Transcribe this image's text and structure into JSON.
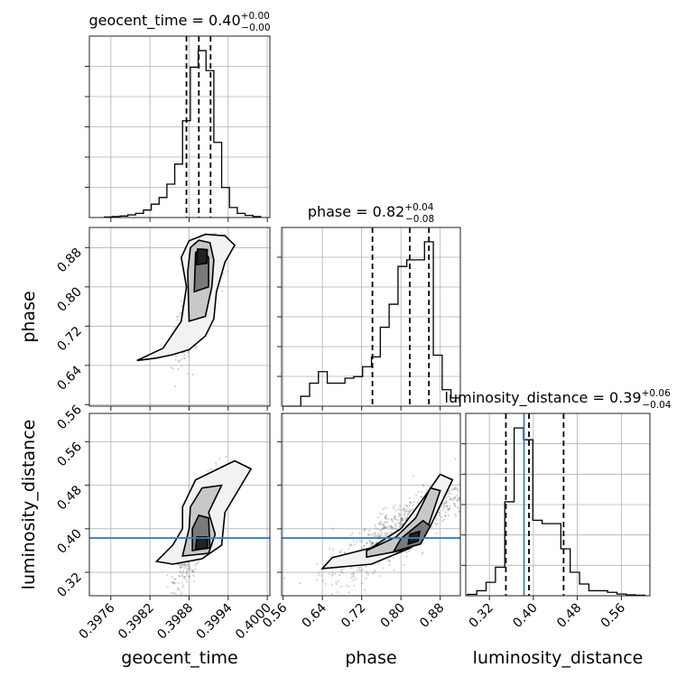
{
  "chart_data": {
    "type": "corner",
    "parameters": [
      "geocent_time",
      "phase",
      "luminosity_distance"
    ],
    "axis_labels": {
      "geocent_time": "geocent_time",
      "phase": "phase",
      "luminosity_distance": "luminosity_distance"
    },
    "ranges": {
      "geocent_time": [
        0.39727,
        0.40004
      ],
      "phase": [
        0.557,
        0.921
      ],
      "luminosity_distance": [
        0.277,
        0.612
      ]
    },
    "ticks": {
      "geocent_time": [
        "0.3976",
        "0.3982",
        "0.3988",
        "0.3994",
        "0.4000"
      ],
      "phase": [
        "0.56",
        "0.64",
        "0.72",
        "0.80",
        "0.88"
      ],
      "luminosity_distance": [
        "0.32",
        "0.40",
        "0.48",
        "0.56"
      ]
    },
    "titles": [
      {
        "param": "geocent_time",
        "label": "geocent_time = 0.40",
        "plus": "+0.00",
        "minus": "−0.00"
      },
      {
        "param": "phase",
        "label": "phase = 0.82",
        "plus": "+0.04",
        "minus": "−0.08"
      },
      {
        "param": "luminosity_distance",
        "label": "luminosity_distance = 0.39",
        "plus": "+0.06",
        "minus": "−0.04"
      }
    ],
    "quantiles": {
      "geocent_time": [
        0.39876,
        0.39895,
        0.39913
      ],
      "phase": [
        0.742,
        0.818,
        0.857
      ],
      "luminosity_distance": [
        0.35,
        0.392,
        0.455
      ]
    },
    "truths": {
      "luminosity_distance": 0.383
    },
    "histograms": {
      "geocent_time": {
        "edges": [
          0.3975,
          0.39762,
          0.39774,
          0.39786,
          0.39798,
          0.3981,
          0.39822,
          0.39834,
          0.39846,
          0.39858,
          0.3987,
          0.39882,
          0.39894,
          0.39906,
          0.39918,
          0.3993,
          0.39942,
          0.39954,
          0.39966,
          0.39978,
          0.3999
        ],
        "counts": [
          0.3,
          0.6,
          0.9,
          1.6,
          2.5,
          4.5,
          8,
          12,
          20,
          32,
          58,
          90,
          100,
          88,
          45,
          18,
          6,
          2.5,
          1.3,
          0.6
        ]
      },
      "phase": {
        "edges": [
          0.56,
          0.578,
          0.596,
          0.614,
          0.632,
          0.65,
          0.668,
          0.686,
          0.704,
          0.722,
          0.74,
          0.758,
          0.776,
          0.794,
          0.812,
          0.83,
          0.848,
          0.866,
          0.884,
          0.902,
          0.92
        ],
        "counts": [
          0,
          0,
          6,
          14,
          21,
          14,
          14,
          17,
          18,
          24,
          30,
          48,
          62,
          85,
          89,
          89,
          100,
          31,
          10,
          5
        ]
      },
      "luminosity_distance": {
        "edges": [
          0.28,
          0.297,
          0.314,
          0.331,
          0.348,
          0.365,
          0.382,
          0.399,
          0.416,
          0.433,
          0.45,
          0.467,
          0.484,
          0.501,
          0.518,
          0.535,
          0.552,
          0.569,
          0.586,
          0.603
        ],
        "counts": [
          0.8,
          3,
          8,
          17,
          56,
          100,
          93,
          45,
          43,
          43,
          28,
          14,
          7,
          3,
          3,
          2,
          1,
          0.5,
          0.3
        ]
      }
    },
    "scatter_seeds": {
      "phase_vs_geocent_time": {
        "center": [
          0.39895,
          0.78
        ],
        "spread": [
          0.00016,
          0.06
        ],
        "corr": 0.72
      },
      "luminosity_distance_vs_geocent_time": {
        "center": [
          0.39895,
          0.4
        ],
        "spread": [
          0.00016,
          0.05
        ],
        "corr": 0.78
      },
      "luminosity_distance_vs_phase": {
        "center": [
          0.8,
          0.4
        ],
        "spread": [
          0.07,
          0.05
        ],
        "corr": 0.82
      }
    },
    "contours": {
      "phase_vs_geocent_time": [
        [
          [
            0.39855,
            0.662
          ],
          [
            0.3988,
            0.672
          ],
          [
            0.39905,
            0.7
          ],
          [
            0.39918,
            0.735
          ],
          [
            0.39922,
            0.79
          ],
          [
            0.39935,
            0.85
          ],
          [
            0.3995,
            0.885
          ],
          [
            0.39935,
            0.904
          ],
          [
            0.39905,
            0.907
          ],
          [
            0.3988,
            0.894
          ],
          [
            0.39868,
            0.86
          ],
          [
            0.39876,
            0.8
          ],
          [
            0.39868,
            0.73
          ],
          [
            0.3984,
            0.675
          ],
          [
            0.39808,
            0.655
          ],
          [
            0.398,
            0.65
          ],
          [
            0.3983,
            0.655
          ],
          [
            0.39855,
            0.662
          ]
        ],
        [
          [
            0.3988,
            0.73
          ],
          [
            0.39905,
            0.74
          ],
          [
            0.39915,
            0.8
          ],
          [
            0.39918,
            0.855
          ],
          [
            0.39912,
            0.89
          ],
          [
            0.39895,
            0.895
          ],
          [
            0.39882,
            0.88
          ],
          [
            0.39878,
            0.83
          ],
          [
            0.3988,
            0.73
          ]
        ],
        [
          [
            0.39888,
            0.79
          ],
          [
            0.3991,
            0.8
          ],
          [
            0.3991,
            0.86
          ],
          [
            0.399,
            0.877
          ],
          [
            0.3989,
            0.87
          ],
          [
            0.39888,
            0.79
          ]
        ],
        [
          [
            0.39891,
            0.845
          ],
          [
            0.39907,
            0.848
          ],
          [
            0.39908,
            0.876
          ],
          [
            0.39893,
            0.877
          ],
          [
            0.39891,
            0.845
          ]
        ]
      ],
      "luminosity_distance_vs_geocent_time": [
        [
          [
            0.39855,
            0.335
          ],
          [
            0.399,
            0.345
          ],
          [
            0.3993,
            0.37
          ],
          [
            0.39935,
            0.43
          ],
          [
            0.39975,
            0.51
          ],
          [
            0.3995,
            0.525
          ],
          [
            0.3989,
            0.49
          ],
          [
            0.3987,
            0.44
          ],
          [
            0.3987,
            0.4
          ],
          [
            0.39855,
            0.37
          ],
          [
            0.3983,
            0.34
          ],
          [
            0.39855,
            0.335
          ]
        ],
        [
          [
            0.3987,
            0.35
          ],
          [
            0.3991,
            0.355
          ],
          [
            0.3992,
            0.39
          ],
          [
            0.3991,
            0.43
          ],
          [
            0.3993,
            0.48
          ],
          [
            0.399,
            0.475
          ],
          [
            0.39882,
            0.44
          ],
          [
            0.3988,
            0.4
          ],
          [
            0.3987,
            0.35
          ]
        ],
        [
          [
            0.39885,
            0.36
          ],
          [
            0.39912,
            0.365
          ],
          [
            0.3991,
            0.42
          ],
          [
            0.39895,
            0.425
          ],
          [
            0.39885,
            0.4
          ],
          [
            0.39885,
            0.36
          ]
        ],
        [
          [
            0.3989,
            0.362
          ],
          [
            0.39908,
            0.364
          ],
          [
            0.39908,
            0.385
          ],
          [
            0.39892,
            0.385
          ],
          [
            0.3989,
            0.362
          ]
        ]
      ],
      "luminosity_distance_vs_phase": [
        [
          [
            0.64,
            0.327
          ],
          [
            0.74,
            0.335
          ],
          [
            0.82,
            0.365
          ],
          [
            0.86,
            0.405
          ],
          [
            0.905,
            0.49
          ],
          [
            0.88,
            0.5
          ],
          [
            0.845,
            0.455
          ],
          [
            0.8,
            0.4
          ],
          [
            0.74,
            0.365
          ],
          [
            0.66,
            0.347
          ],
          [
            0.64,
            0.327
          ]
        ],
        [
          [
            0.73,
            0.348
          ],
          [
            0.8,
            0.36
          ],
          [
            0.85,
            0.39
          ],
          [
            0.88,
            0.47
          ],
          [
            0.86,
            0.475
          ],
          [
            0.83,
            0.42
          ],
          [
            0.79,
            0.385
          ],
          [
            0.73,
            0.36
          ],
          [
            0.73,
            0.348
          ]
        ],
        [
          [
            0.785,
            0.358
          ],
          [
            0.84,
            0.372
          ],
          [
            0.86,
            0.405
          ],
          [
            0.845,
            0.415
          ],
          [
            0.8,
            0.382
          ],
          [
            0.785,
            0.358
          ]
        ],
        [
          [
            0.815,
            0.372
          ],
          [
            0.835,
            0.378
          ],
          [
            0.838,
            0.395
          ],
          [
            0.818,
            0.39
          ],
          [
            0.815,
            0.372
          ]
        ]
      ]
    }
  }
}
